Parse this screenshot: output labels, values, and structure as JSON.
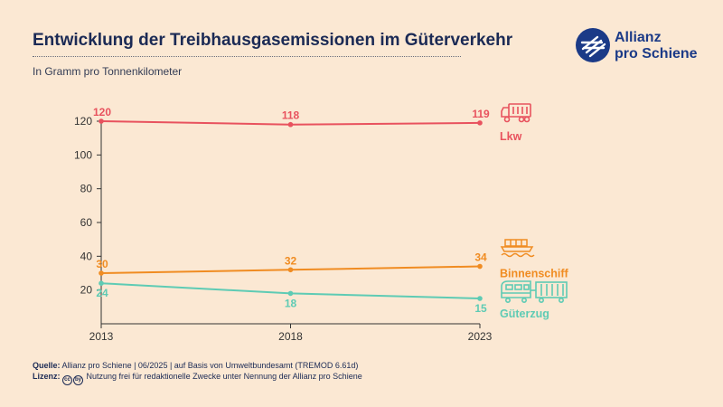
{
  "header": {
    "title": "Entwicklung der Treibhausgasemissionen im Güterverkehr",
    "subtitle": "In Gramm pro Tonnenkilometer"
  },
  "logo": {
    "line1": "Allianz",
    "line2": "pro Schiene"
  },
  "footer": {
    "source_label": "Quelle:",
    "source_text": "Allianz pro Schiene | 06/2025 | auf Basis von Umweltbundesamt (TREMOD 6.61d)",
    "license_label": "Lizenz:",
    "license_icons": [
      "cc",
      "by"
    ],
    "license_text": "Nutzung frei für redaktionelle Zwecke unter Nennung der Allianz pro Schiene"
  },
  "colors": {
    "lkw": "#e8525e",
    "binnenschiff": "#f08c22",
    "gueterzug": "#5ecbb4",
    "axis": "#333333",
    "title": "#1b2a55"
  },
  "chart_data": {
    "type": "line",
    "title": "Entwicklung der Treibhausgasemissionen im Güterverkehr",
    "ylabel": "In Gramm pro Tonnenkilometer",
    "xlabel": "",
    "categories": [
      "2013",
      "2018",
      "2023"
    ],
    "yticks": [
      20,
      40,
      60,
      80,
      100,
      120
    ],
    "ylim": [
      0,
      120
    ],
    "legend": "right-end-labels",
    "series": [
      {
        "name": "Lkw",
        "key": "lkw",
        "values": [
          120,
          118,
          119
        ],
        "icon": "truck-icon"
      },
      {
        "name": "Binnenschiff",
        "key": "binnenschiff",
        "values": [
          30,
          32,
          34
        ],
        "icon": "ship-icon"
      },
      {
        "name": "Güterzug",
        "key": "gueterzug",
        "values": [
          24,
          18,
          15
        ],
        "icon": "train-icon"
      }
    ]
  }
}
